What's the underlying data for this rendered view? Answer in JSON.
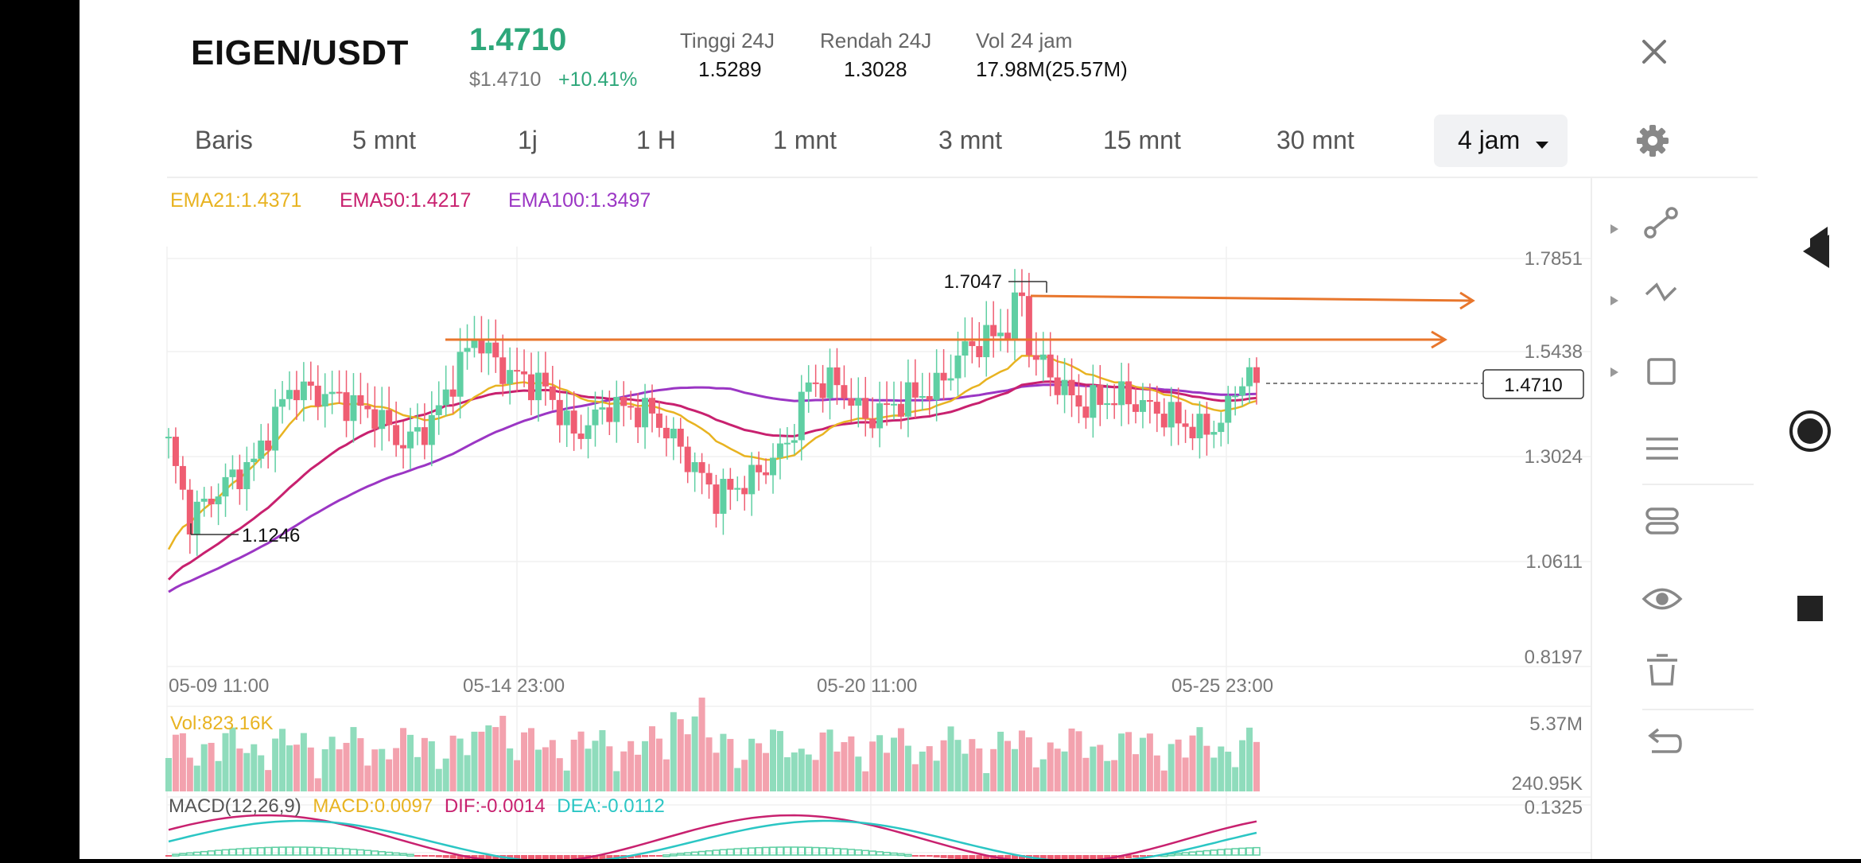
{
  "header": {
    "pair": "EIGEN/USDT",
    "price": "1.4710",
    "usd_price": "$1.4710",
    "change": "+10.41%",
    "stats": [
      {
        "label": "Tinggi 24J",
        "value": "1.5289"
      },
      {
        "label": "Rendah 24J",
        "value": "1.3028"
      },
      {
        "label": "Vol 24 jam",
        "value": "17.98M(25.57M)"
      }
    ]
  },
  "tabs": [
    "Baris",
    "5 mnt",
    "1j",
    "1 H",
    "1 mnt",
    "3 mnt",
    "15 mnt",
    "30 mnt"
  ],
  "active_tab": "4 jam",
  "indicators": {
    "ema21": "EMA21:1.4371",
    "ema50": "EMA50:1.4217",
    "ema100": "EMA100:1.3497",
    "vol": "Vol:823.16K",
    "macd_name": "MACD(12,26,9)",
    "macd": "MACD:0.0097",
    "dif": "DIF:-0.0014",
    "dea": "DEA:-0.0112"
  },
  "chart_data": {
    "type": "candlestick",
    "y_ticks": [
      "1.7851",
      "1.5438",
      "1.3024",
      "1.0611",
      "0.8197"
    ],
    "x_ticks": [
      "05-09 11:00",
      "05-14 23:00",
      "05-20 11:00",
      "05-25 23:00"
    ],
    "high_label": "1.7047",
    "low_label": "1.1246",
    "current_price_label": "1.4710",
    "volume_ticks": [
      "5.37M",
      "240.95K"
    ],
    "macd_tick": "0.1325",
    "colors": {
      "up": "#5fcfa3",
      "down": "#ef5d72",
      "ema21": "#e8b321",
      "ema50": "#c8216f",
      "ema100": "#9b36c4",
      "trend": "#e8762c"
    }
  },
  "icons": [
    "close-icon",
    "settings-gear-icon",
    "ray-line-icon",
    "multi-line-icon",
    "rectangle-icon",
    "fib-icon",
    "channel-icon",
    "visibility-eye-icon",
    "trash-icon",
    "undo-icon",
    "back-triangle-icon",
    "home-circle-icon",
    "recents-square-icon"
  ]
}
